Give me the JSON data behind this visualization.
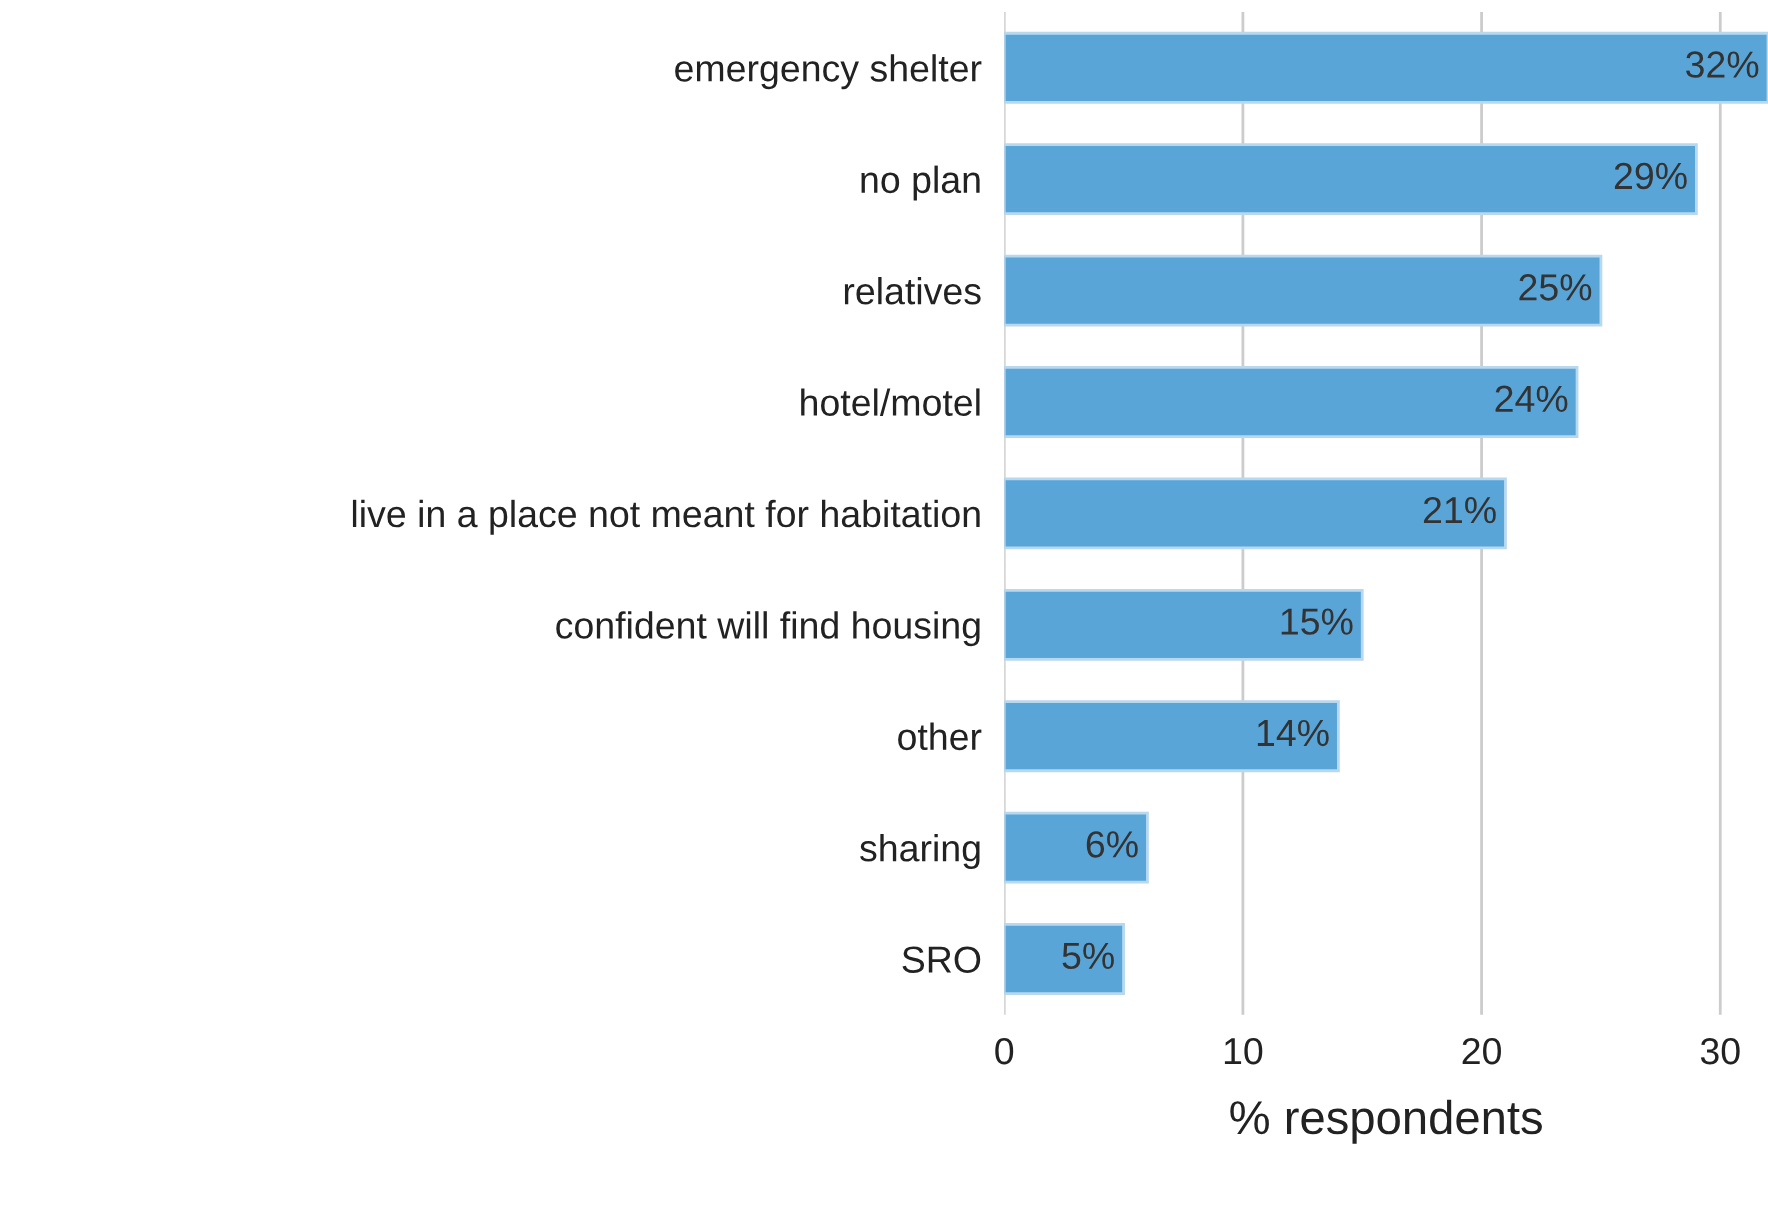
{
  "chart_data": {
    "type": "bar",
    "orientation": "horizontal",
    "xlabel": "% respondents",
    "categories": [
      "emergency shelter",
      "no plan",
      "relatives",
      "hotel/motel",
      "live in a place not meant for habitation",
      "confident will find housing",
      "other",
      "sharing",
      "SRO"
    ],
    "values": [
      32,
      29,
      25,
      24,
      21,
      15,
      14,
      6,
      5
    ],
    "value_labels": [
      "32%",
      "29%",
      "25%",
      "24%",
      "21%",
      "15%",
      "14%",
      "6%",
      "5%"
    ],
    "color": "#5aa5d8",
    "xlim": [
      0,
      32
    ],
    "xticks": [
      0,
      10,
      20,
      30
    ],
    "grid": "x",
    "legend": false
  }
}
